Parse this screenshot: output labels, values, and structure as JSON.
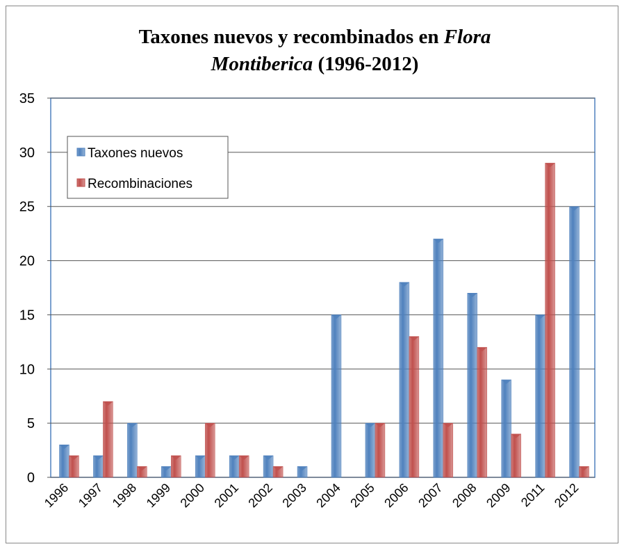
{
  "chart_data": {
    "type": "bar",
    "title": [
      "Taxones nuevos y recombinados en",
      "Flora",
      "Montiberica",
      "(1996-2012)"
    ],
    "categories": [
      "1996",
      "1997",
      "1998",
      "1999",
      "2000",
      "2001",
      "2002",
      "2003",
      "2004",
      "2005",
      "2006",
      "2007",
      "2008",
      "2009",
      "2011",
      "2012"
    ],
    "series": [
      {
        "name": "Taxones nuevos",
        "color": "#4f81bd",
        "values": [
          3,
          2,
          5,
          1,
          2,
          2,
          2,
          1,
          15,
          5,
          18,
          22,
          17,
          9,
          15,
          25
        ]
      },
      {
        "name": "Recombinaciones",
        "color": "#c0504d",
        "values": [
          2,
          7,
          1,
          2,
          5,
          2,
          1,
          0,
          0,
          5,
          13,
          5,
          12,
          4,
          29,
          1
        ]
      }
    ],
    "ylim": [
      0,
      35
    ],
    "yticks": [
      0,
      5,
      10,
      15,
      20,
      25,
      30,
      35
    ],
    "grid": true,
    "legend": "upper left"
  }
}
